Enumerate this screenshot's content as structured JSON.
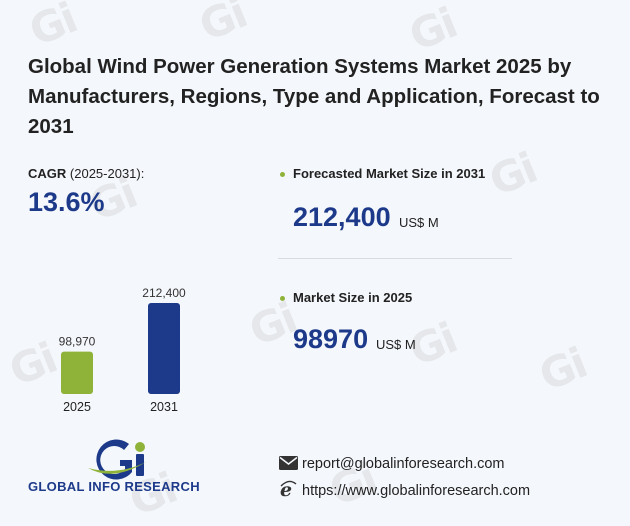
{
  "title": "Global Wind Power Generation Systems Market 2025 by Manufacturers, Regions, Type and Application, Forecast to 2031",
  "cagr": {
    "label": "CAGR",
    "period": "(2025-2031):",
    "value": "13.6%"
  },
  "forecast": {
    "label": "Forecasted Market Size in 2031",
    "value": "212,400",
    "unit": "US$ M"
  },
  "current": {
    "label": "Market Size in 2025",
    "value": "98970",
    "unit": "US$ M"
  },
  "chart_data": {
    "type": "bar",
    "categories": [
      "2025",
      "2031"
    ],
    "values": [
      98970,
      212400
    ],
    "value_labels": [
      "98,970",
      "212,400"
    ],
    "colors": [
      "#8fb339",
      "#1d3a8a"
    ],
    "ylim": [
      0,
      212400
    ],
    "grid": false,
    "legend": "none"
  },
  "logo": {
    "text": "GLOBAL INFO RESEARCH",
    "colors": {
      "primary": "#1d3a8a",
      "accent": "#8fb339"
    }
  },
  "contact": {
    "email": "report@globalinforesearch.com",
    "website": "https://www.globalinforesearch.com",
    "email_icon": "envelope-icon",
    "web_icon": "browser-e-icon"
  }
}
